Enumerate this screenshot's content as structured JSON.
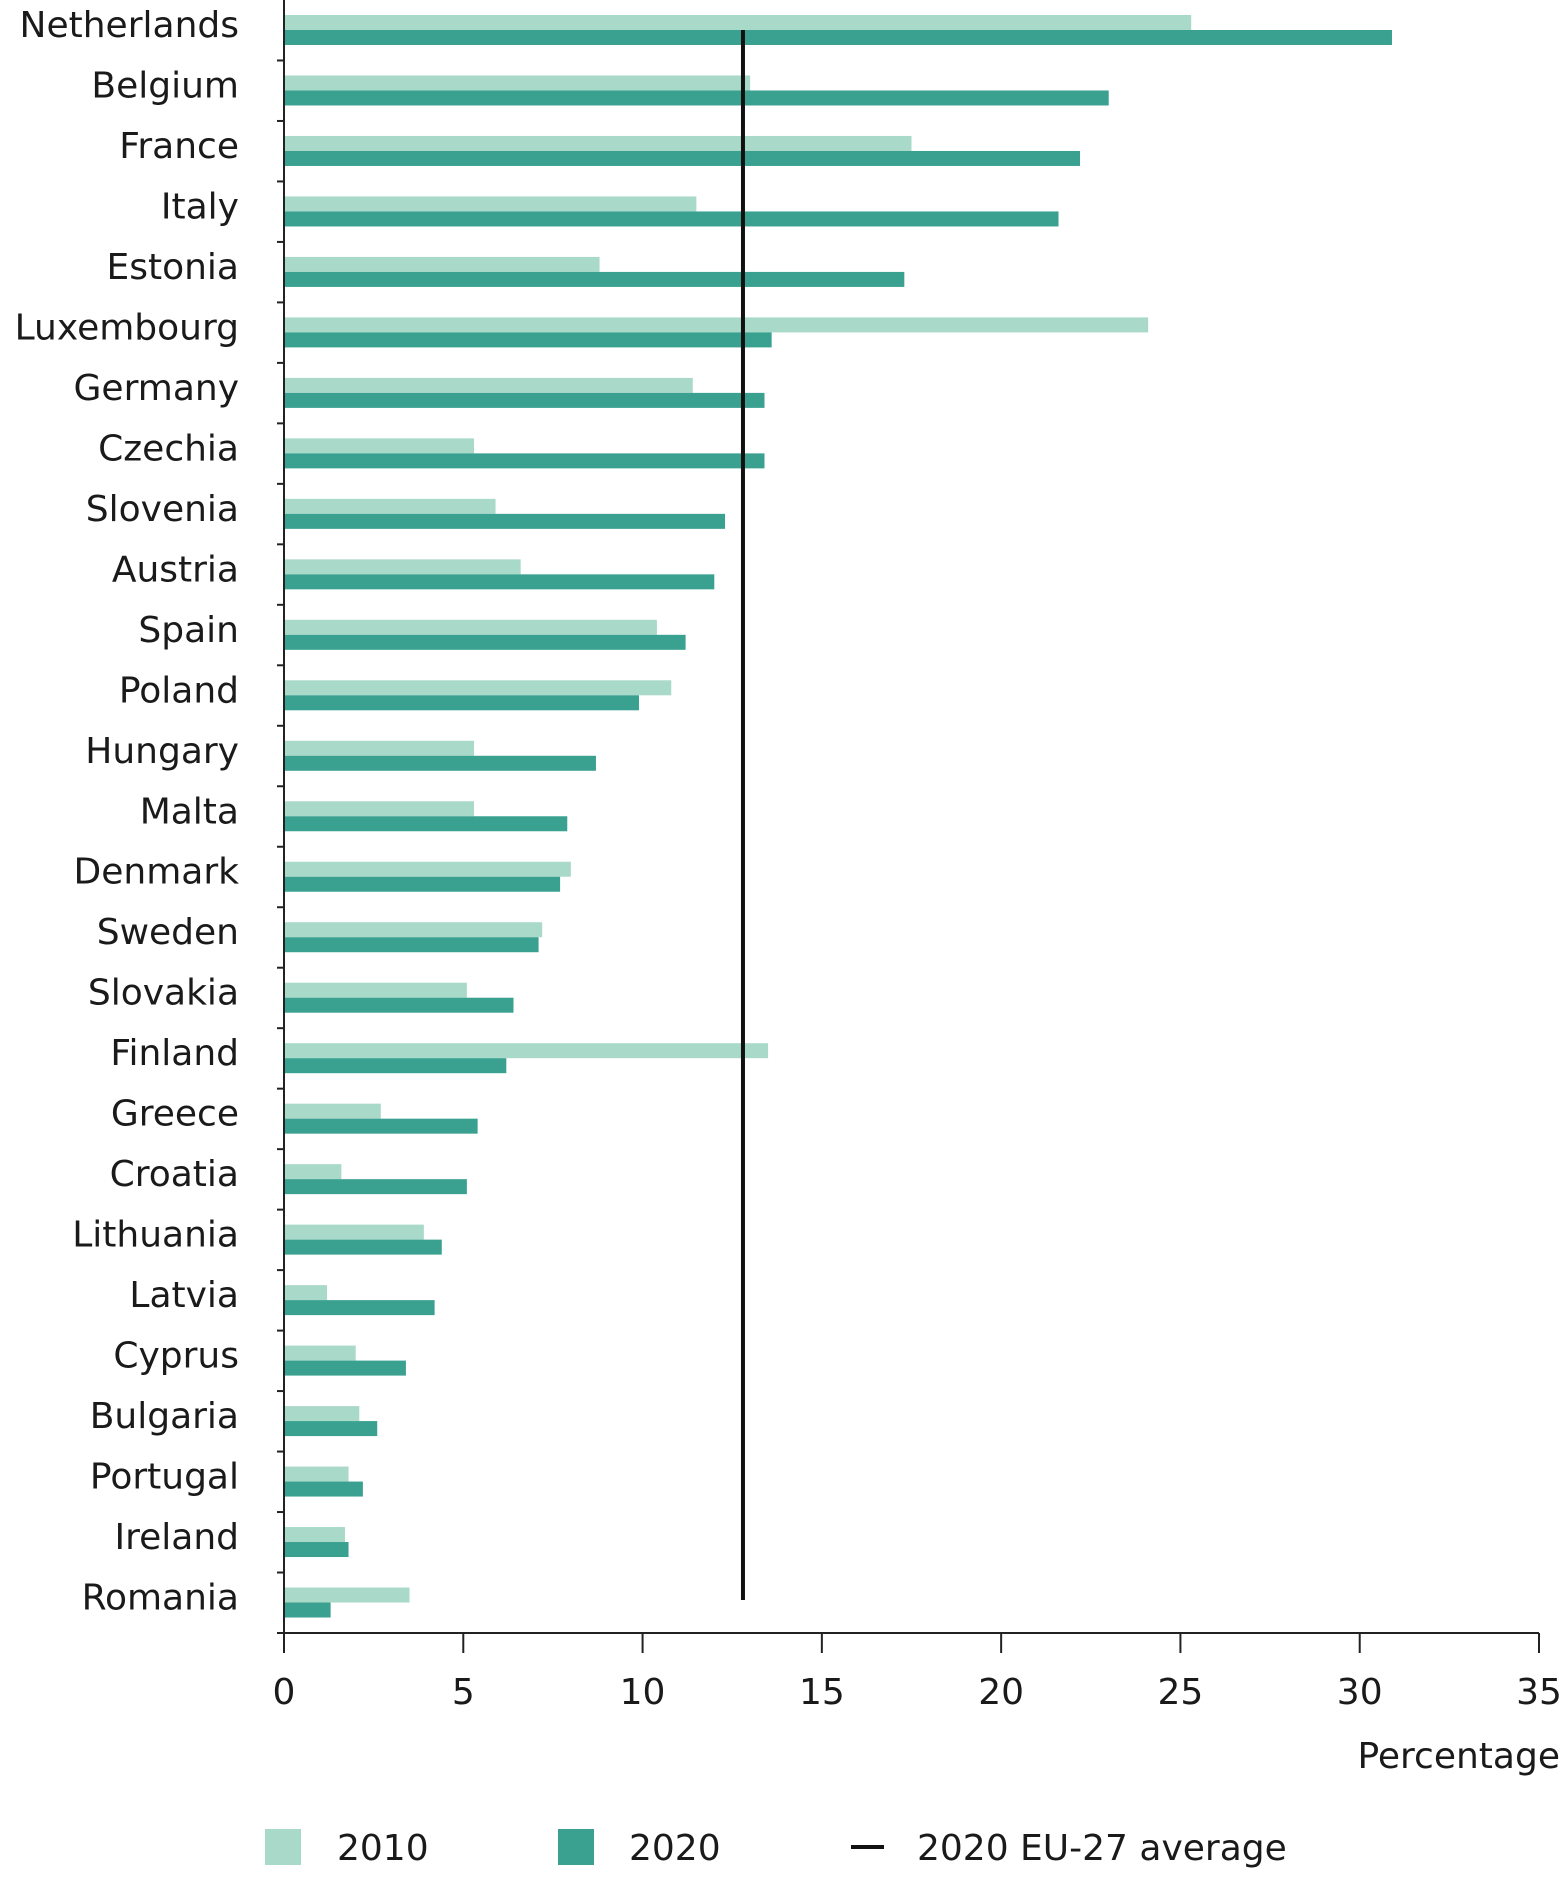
{
  "chart_data": {
    "type": "bar",
    "orientation": "horizontal",
    "title": "",
    "xlabel": "Percentage",
    "ylabel": "",
    "xlim": [
      0,
      35
    ],
    "xticks": [
      0,
      5,
      10,
      15,
      20,
      25,
      30,
      35
    ],
    "grid": false,
    "legend_position": "bottom",
    "categories": [
      "Netherlands",
      "Belgium",
      "France",
      "Italy",
      "Estonia",
      "Luxembourg",
      "Germany",
      "Czechia",
      "Slovenia",
      "Austria",
      "Spain",
      "Poland",
      "Hungary",
      "Malta",
      "Denmark",
      "Sweden",
      "Slovakia",
      "Finland",
      "Greece",
      "Croatia",
      "Lithuania",
      "Latvia",
      "Cyprus",
      "Bulgaria",
      "Portugal",
      "Ireland",
      "Romania"
    ],
    "series": [
      {
        "name": "2010",
        "color": "#a9d9c9",
        "values": [
          25.3,
          13.0,
          17.5,
          11.5,
          8.8,
          24.1,
          11.4,
          5.3,
          5.9,
          6.6,
          10.4,
          10.8,
          5.3,
          5.3,
          8.0,
          7.2,
          5.1,
          13.5,
          2.7,
          1.6,
          3.9,
          1.2,
          2.0,
          2.1,
          1.8,
          1.7,
          3.5
        ]
      },
      {
        "name": "2020",
        "color": "#3aa190",
        "values": [
          30.9,
          23.0,
          22.2,
          21.6,
          17.3,
          13.6,
          13.4,
          13.4,
          12.3,
          12.0,
          11.2,
          9.9,
          8.7,
          7.9,
          7.7,
          7.1,
          6.4,
          6.2,
          5.4,
          5.1,
          4.4,
          4.2,
          3.4,
          2.6,
          2.2,
          1.8,
          1.3
        ]
      }
    ],
    "reference_line": {
      "name": "2020 EU-27 average",
      "value": 12.8,
      "color": "#111111"
    }
  }
}
